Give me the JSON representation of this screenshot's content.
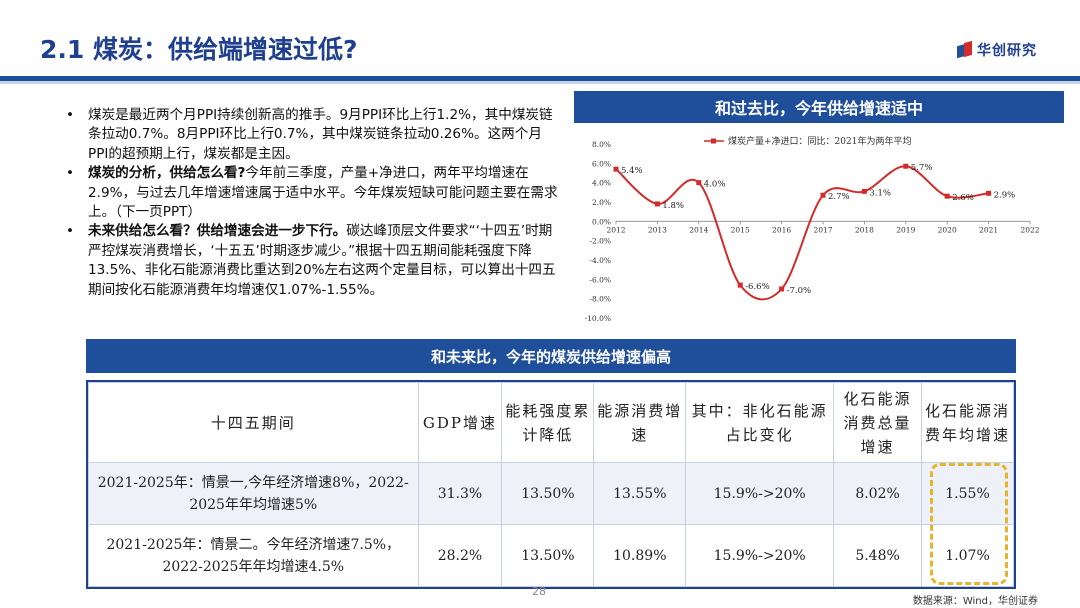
{
  "title": "2.1 煤炭：供给端增速过低?",
  "logo_text": "华创研究",
  "bullets": [
    {
      "bold": "",
      "text": "煤炭是最近两个月PPI持续创新高的推手。9月PPI环比上行1.2%，其中煤炭链条拉动0.7%。8月PPI环比上行0.7%，其中煤炭链条拉动0.26%。这两个月PPI的超预期上行，煤炭都是主因。"
    },
    {
      "bold": "煤炭的分析，供给怎么看?",
      "text": "今年前三季度，产量+净进口，两年平均增速在2.9%，与过去几年增速增速属于适中水平。今年煤炭短缺可能问题主要在需求上。（下一页PPT）"
    },
    {
      "bold": "未来供给怎么看？供给增速会进一步下行。",
      "text": "碳达峰顶层文件要求“‘十四五’时期严控煤炭消费增长，‘十五五’时期逐步减少。”根据十四五期间能耗强度下降13.5%、非化石能源消费比重达到20%左右这两个定量目标，可以算出十四五期间按化石能源消费年均增速仅1.07%-1.55%。"
    }
  ],
  "chart_header": "和过去比，今年供给增速适中",
  "table_header": "和未来比，今年的煤炭供给增速偏高",
  "chart_data": {
    "type": "line",
    "legend": "煤炭产量+净进口：同比：2021年为两年平均",
    "x": [
      2012,
      2013,
      2014,
      2015,
      2016,
      2017,
      2018,
      2019,
      2020,
      2021
    ],
    "x_ticks": [
      "2012",
      "2013",
      "2014",
      "2015",
      "2016",
      "2017",
      "2018",
      "2019",
      "2020",
      "2021",
      "2022"
    ],
    "series": [
      {
        "name": "煤炭产量+净进口：同比：2021年为两年平均",
        "values": [
          5.4,
          1.8,
          4.0,
          -6.6,
          -7.0,
          2.7,
          3.1,
          5.7,
          2.6,
          2.9
        ]
      }
    ],
    "data_labels": [
      "5.4%",
      "1.8%",
      "4.0%",
      "-6.6%",
      "-7.0%",
      "2.7%",
      "3.1%",
      "5.7%",
      "2.6%",
      "2.9%"
    ],
    "y_ticks": [
      "8.0%",
      "6.0%",
      "4.0%",
      "2.0%",
      "0.0%",
      "-2.0%",
      "-4.0%",
      "-6.0%",
      "-8.0%",
      "-10.0%"
    ],
    "ylim": [
      -10,
      8
    ],
    "xlim": [
      2012,
      2022
    ],
    "color": "#d42a2a",
    "grid": false
  },
  "table": {
    "headers": [
      "十四五期间",
      "GDP增速",
      "能耗强度累计降低",
      "能源消费增速",
      "其中：非化石能源占比变化",
      "化石能源消费总量增速",
      "化石能源消费年均增速"
    ],
    "rows": [
      [
        "2021-2025年：情景一,今年经济增速8%，2022-2025年年均增速5%",
        "31.3%",
        "13.50%",
        "13.55%",
        "15.9%->20%",
        "8.02%",
        "1.55%"
      ],
      [
        "2021-2025年：情景二。今年经济增速7.5%，2022-2025年年均增速4.5%",
        "28.2%",
        "13.50%",
        "10.89%",
        "15.9%->20%",
        "5.48%",
        "1.07%"
      ]
    ]
  },
  "page_number": "28",
  "source": "数据来源：Wind，华创证券",
  "colors": {
    "primary": "#1f4e9b",
    "highlight": "#e8b42b",
    "line": "#d42a2a"
  }
}
